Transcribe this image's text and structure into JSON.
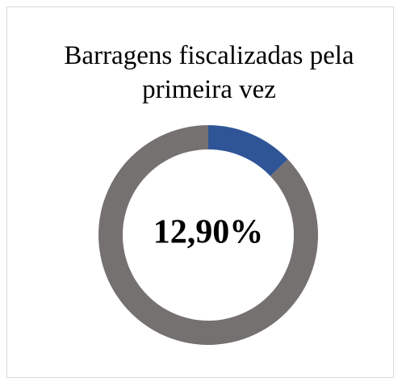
{
  "chart_data": {
    "type": "pie",
    "title": "Barragens fiscalizadas pela primeira vez",
    "categories": [
      null,
      null
    ],
    "values": [
      12.9,
      87.1
    ],
    "value_labels": [
      "12,90%",
      null
    ],
    "colors": [
      "#2f5597",
      "#767171"
    ],
    "donut": true
  }
}
